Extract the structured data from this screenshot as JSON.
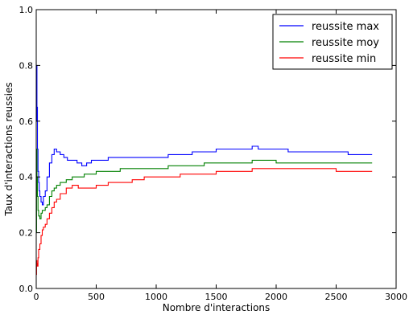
{
  "chart_data": {
    "type": "line",
    "title": "",
    "xlabel": "Nombre d'interactions",
    "ylabel": "Taux d'interactions reussies",
    "xlim": [
      0,
      3000
    ],
    "ylim": [
      0.0,
      1.0
    ],
    "xticks": [
      0,
      500,
      1000,
      1500,
      2000,
      2500,
      3000
    ],
    "xtick_labels": [
      "0",
      "500",
      "1000",
      "1500",
      "2000",
      "2500",
      "3000"
    ],
    "yticks": [
      0.0,
      0.2,
      0.4,
      0.6,
      0.8,
      1.0
    ],
    "ytick_labels": [
      "0.0",
      "0.2",
      "0.4",
      "0.6",
      "0.8",
      "1.0"
    ],
    "grid": false,
    "legend_position": "top-right",
    "series": [
      {
        "name": "reussite max",
        "color": "#0000ff",
        "x": [
          0,
          3,
          6,
          10,
          15,
          20,
          25,
          30,
          40,
          50,
          60,
          75,
          90,
          110,
          130,
          150,
          170,
          200,
          230,
          260,
          300,
          340,
          380,
          420,
          460,
          500,
          600,
          700,
          800,
          900,
          1000,
          1100,
          1200,
          1300,
          1400,
          1500,
          1600,
          1700,
          1800,
          1850,
          1900,
          2000,
          2100,
          2200,
          2300,
          2400,
          2500,
          2600,
          2650,
          2800
        ],
        "y": [
          0.6,
          0.8,
          0.65,
          0.5,
          0.42,
          0.38,
          0.35,
          0.33,
          0.31,
          0.3,
          0.33,
          0.35,
          0.4,
          0.45,
          0.48,
          0.5,
          0.49,
          0.48,
          0.47,
          0.46,
          0.46,
          0.45,
          0.44,
          0.45,
          0.46,
          0.46,
          0.47,
          0.47,
          0.47,
          0.47,
          0.47,
          0.48,
          0.48,
          0.49,
          0.49,
          0.5,
          0.5,
          0.5,
          0.51,
          0.5,
          0.5,
          0.5,
          0.49,
          0.49,
          0.49,
          0.49,
          0.49,
          0.48,
          0.48,
          0.48
        ]
      },
      {
        "name": "reussite moy",
        "color": "#008000",
        "x": [
          0,
          3,
          6,
          10,
          15,
          20,
          30,
          40,
          50,
          60,
          75,
          90,
          110,
          130,
          150,
          170,
          200,
          250,
          300,
          350,
          400,
          500,
          600,
          700,
          800,
          900,
          1000,
          1100,
          1200,
          1300,
          1400,
          1500,
          1600,
          1700,
          1800,
          1900,
          2000,
          2100,
          2200,
          2300,
          2400,
          2500,
          2600,
          2800
        ],
        "y": [
          0.2,
          0.5,
          0.4,
          0.33,
          0.28,
          0.26,
          0.25,
          0.27,
          0.28,
          0.28,
          0.29,
          0.3,
          0.33,
          0.35,
          0.36,
          0.37,
          0.38,
          0.39,
          0.4,
          0.4,
          0.41,
          0.42,
          0.42,
          0.43,
          0.43,
          0.43,
          0.43,
          0.44,
          0.44,
          0.44,
          0.45,
          0.45,
          0.45,
          0.45,
          0.46,
          0.46,
          0.45,
          0.45,
          0.45,
          0.45,
          0.45,
          0.45,
          0.45,
          0.45
        ]
      },
      {
        "name": "reussite min",
        "color": "#ff0000",
        "x": [
          0,
          3,
          6,
          10,
          15,
          20,
          30,
          40,
          50,
          60,
          75,
          90,
          110,
          130,
          150,
          170,
          200,
          250,
          300,
          350,
          400,
          500,
          600,
          700,
          800,
          900,
          1000,
          1100,
          1200,
          1300,
          1400,
          1500,
          1600,
          1700,
          1800,
          1900,
          2000,
          2100,
          2200,
          2300,
          2400,
          2500,
          2600,
          2800
        ],
        "y": [
          0.05,
          0.1,
          0.09,
          0.08,
          0.11,
          0.14,
          0.16,
          0.19,
          0.21,
          0.22,
          0.23,
          0.25,
          0.27,
          0.29,
          0.31,
          0.32,
          0.34,
          0.36,
          0.37,
          0.36,
          0.36,
          0.37,
          0.38,
          0.38,
          0.39,
          0.4,
          0.4,
          0.4,
          0.41,
          0.41,
          0.41,
          0.42,
          0.42,
          0.42,
          0.43,
          0.43,
          0.43,
          0.43,
          0.43,
          0.43,
          0.43,
          0.42,
          0.42,
          0.42
        ]
      }
    ]
  }
}
